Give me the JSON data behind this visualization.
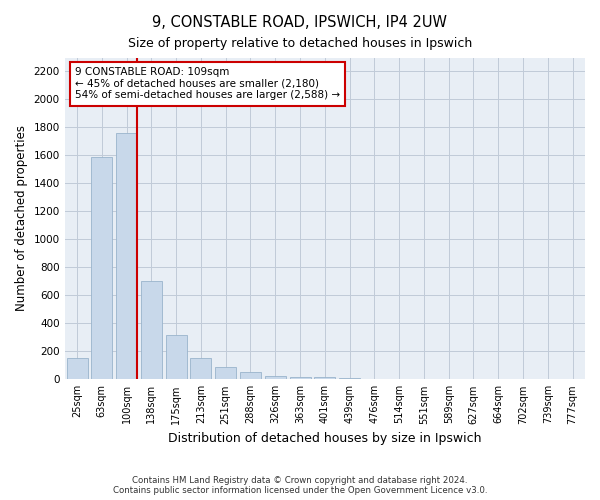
{
  "title1": "9, CONSTABLE ROAD, IPSWICH, IP4 2UW",
  "title2": "Size of property relative to detached houses in Ipswich",
  "xlabel": "Distribution of detached houses by size in Ipswich",
  "ylabel": "Number of detached properties",
  "categories": [
    "25sqm",
    "63sqm",
    "100sqm",
    "138sqm",
    "175sqm",
    "213sqm",
    "251sqm",
    "288sqm",
    "326sqm",
    "363sqm",
    "401sqm",
    "439sqm",
    "476sqm",
    "514sqm",
    "551sqm",
    "589sqm",
    "627sqm",
    "664sqm",
    "702sqm",
    "739sqm",
    "777sqm"
  ],
  "values": [
    155,
    1590,
    1760,
    700,
    315,
    155,
    85,
    50,
    27,
    20,
    13,
    8,
    0,
    0,
    0,
    0,
    0,
    0,
    0,
    0,
    0
  ],
  "bar_color": "#c8d8ea",
  "bar_edge_color": "#9ab4cc",
  "grid_color": "#c0cad8",
  "background_color": "#e8eef5",
  "line_color": "#cc0000",
  "line_x_index": 2.43,
  "annotation_text": "9 CONSTABLE ROAD: 109sqm\n← 45% of detached houses are smaller (2,180)\n54% of semi-detached houses are larger (2,588) →",
  "annotation_box_color": "#ffffff",
  "annotation_box_edge": "#cc0000",
  "footer1": "Contains HM Land Registry data © Crown copyright and database right 2024.",
  "footer2": "Contains public sector information licensed under the Open Government Licence v3.0.",
  "ylim": [
    0,
    2300
  ],
  "yticks": [
    0,
    200,
    400,
    600,
    800,
    1000,
    1200,
    1400,
    1600,
    1800,
    2000,
    2200
  ]
}
